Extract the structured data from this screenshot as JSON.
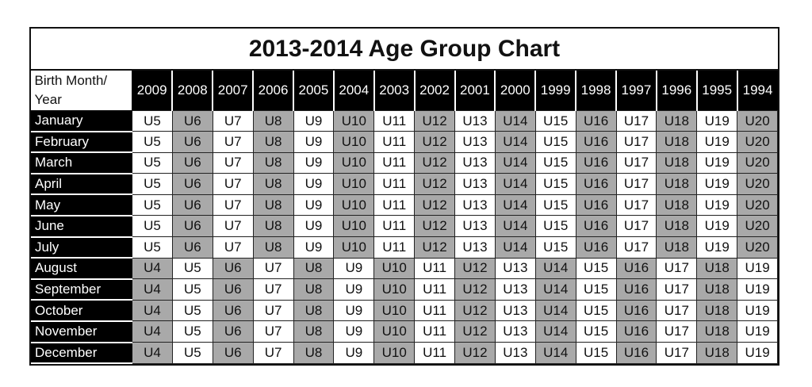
{
  "title": "2013-2014 Age Group Chart",
  "corner_label": "Birth Month/ Year",
  "years": [
    "2009",
    "2008",
    "2007",
    "2006",
    "2005",
    "2004",
    "2003",
    "2002",
    "2001",
    "2000",
    "1999",
    "1998",
    "1997",
    "1996",
    "1995",
    "1994"
  ],
  "rows": [
    {
      "month": "January",
      "cells": [
        "U5",
        "U6",
        "U7",
        "U8",
        "U9",
        "U10",
        "U11",
        "U12",
        "U13",
        "U14",
        "U15",
        "U16",
        "U17",
        "U18",
        "U19",
        "U20"
      ]
    },
    {
      "month": "February",
      "cells": [
        "U5",
        "U6",
        "U7",
        "U8",
        "U9",
        "U10",
        "U11",
        "U12",
        "U13",
        "U14",
        "U15",
        "U16",
        "U17",
        "U18",
        "U19",
        "U20"
      ]
    },
    {
      "month": "March",
      "cells": [
        "U5",
        "U6",
        "U7",
        "U8",
        "U9",
        "U10",
        "U11",
        "U12",
        "U13",
        "U14",
        "U15",
        "U16",
        "U17",
        "U18",
        "U19",
        "U20"
      ]
    },
    {
      "month": "April",
      "cells": [
        "U5",
        "U6",
        "U7",
        "U8",
        "U9",
        "U10",
        "U11",
        "U12",
        "U13",
        "U14",
        "U15",
        "U16",
        "U17",
        "U18",
        "U19",
        "U20"
      ]
    },
    {
      "month": "May",
      "cells": [
        "U5",
        "U6",
        "U7",
        "U8",
        "U9",
        "U10",
        "U11",
        "U12",
        "U13",
        "U14",
        "U15",
        "U16",
        "U17",
        "U18",
        "U19",
        "U20"
      ]
    },
    {
      "month": "June",
      "cells": [
        "U5",
        "U6",
        "U7",
        "U8",
        "U9",
        "U10",
        "U11",
        "U12",
        "U13",
        "U14",
        "U15",
        "U16",
        "U17",
        "U18",
        "U19",
        "U20"
      ]
    },
    {
      "month": "July",
      "cells": [
        "U5",
        "U6",
        "U7",
        "U8",
        "U9",
        "U10",
        "U11",
        "U12",
        "U13",
        "U14",
        "U15",
        "U16",
        "U17",
        "U18",
        "U19",
        "U20"
      ]
    },
    {
      "month": "August",
      "cells": [
        "U4",
        "U5",
        "U6",
        "U7",
        "U8",
        "U9",
        "U10",
        "U11",
        "U12",
        "U13",
        "U14",
        "U15",
        "U16",
        "U17",
        "U18",
        "U19"
      ]
    },
    {
      "month": "September",
      "cells": [
        "U4",
        "U5",
        "U6",
        "U7",
        "U8",
        "U9",
        "U10",
        "U11",
        "U12",
        "U13",
        "U14",
        "U15",
        "U16",
        "U17",
        "U18",
        "U19"
      ]
    },
    {
      "month": "October",
      "cells": [
        "U4",
        "U5",
        "U6",
        "U7",
        "U8",
        "U9",
        "U10",
        "U11",
        "U12",
        "U13",
        "U14",
        "U15",
        "U16",
        "U17",
        "U18",
        "U19"
      ]
    },
    {
      "month": "November",
      "cells": [
        "U4",
        "U5",
        "U6",
        "U7",
        "U8",
        "U9",
        "U10",
        "U11",
        "U12",
        "U13",
        "U14",
        "U15",
        "U16",
        "U17",
        "U18",
        "U19"
      ]
    },
    {
      "month": "December",
      "cells": [
        "U4",
        "U5",
        "U6",
        "U7",
        "U8",
        "U9",
        "U10",
        "U11",
        "U12",
        "U13",
        "U14",
        "U15",
        "U16",
        "U17",
        "U18",
        "U19"
      ]
    }
  ],
  "colors": {
    "shaded": "#a9a9a9",
    "header_bg": "#000000",
    "header_text": "#ffffff"
  },
  "shading_rule": "even age groups shaded gray"
}
